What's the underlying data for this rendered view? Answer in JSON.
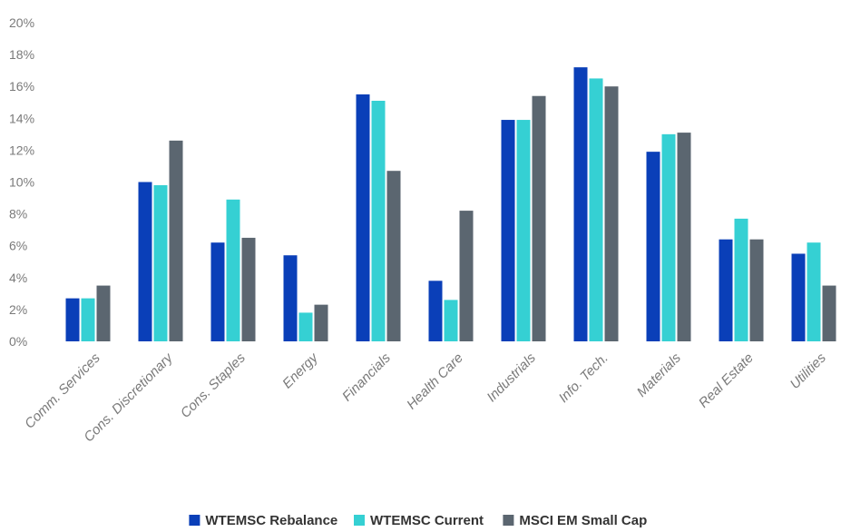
{
  "chart_data": {
    "type": "bar",
    "categories": [
      "Comm. Services",
      "Cons. Discretionary",
      "Cons. Staples",
      "Energy",
      "Financials",
      "Health Care",
      "Industrials",
      "Info. Tech.",
      "Materials",
      "Real Estate",
      "Utilities"
    ],
    "series": [
      {
        "name": "WTEMSC Rebalance",
        "color": "#0a3fb8",
        "values": [
          2.7,
          10.0,
          6.2,
          5.4,
          15.5,
          3.8,
          13.9,
          17.2,
          11.9,
          6.4,
          5.5
        ]
      },
      {
        "name": "WTEMSC Current",
        "color": "#35d0d3",
        "values": [
          2.7,
          9.8,
          8.9,
          1.8,
          15.1,
          2.6,
          13.9,
          16.5,
          13.0,
          7.7,
          6.2
        ]
      },
      {
        "name": "MSCI EM Small Cap",
        "color": "#5b6670",
        "values": [
          3.5,
          12.6,
          6.5,
          2.3,
          10.7,
          8.2,
          15.4,
          16.0,
          13.1,
          6.4,
          3.5
        ]
      }
    ],
    "yticks": [
      "0%",
      "2%",
      "4%",
      "6%",
      "8%",
      "10%",
      "12%",
      "14%",
      "16%",
      "18%",
      "20%"
    ],
    "ylim": [
      0,
      20
    ],
    "grid": false,
    "legend_position": "bottom-center",
    "title": "",
    "xlabel": "",
    "ylabel": ""
  }
}
